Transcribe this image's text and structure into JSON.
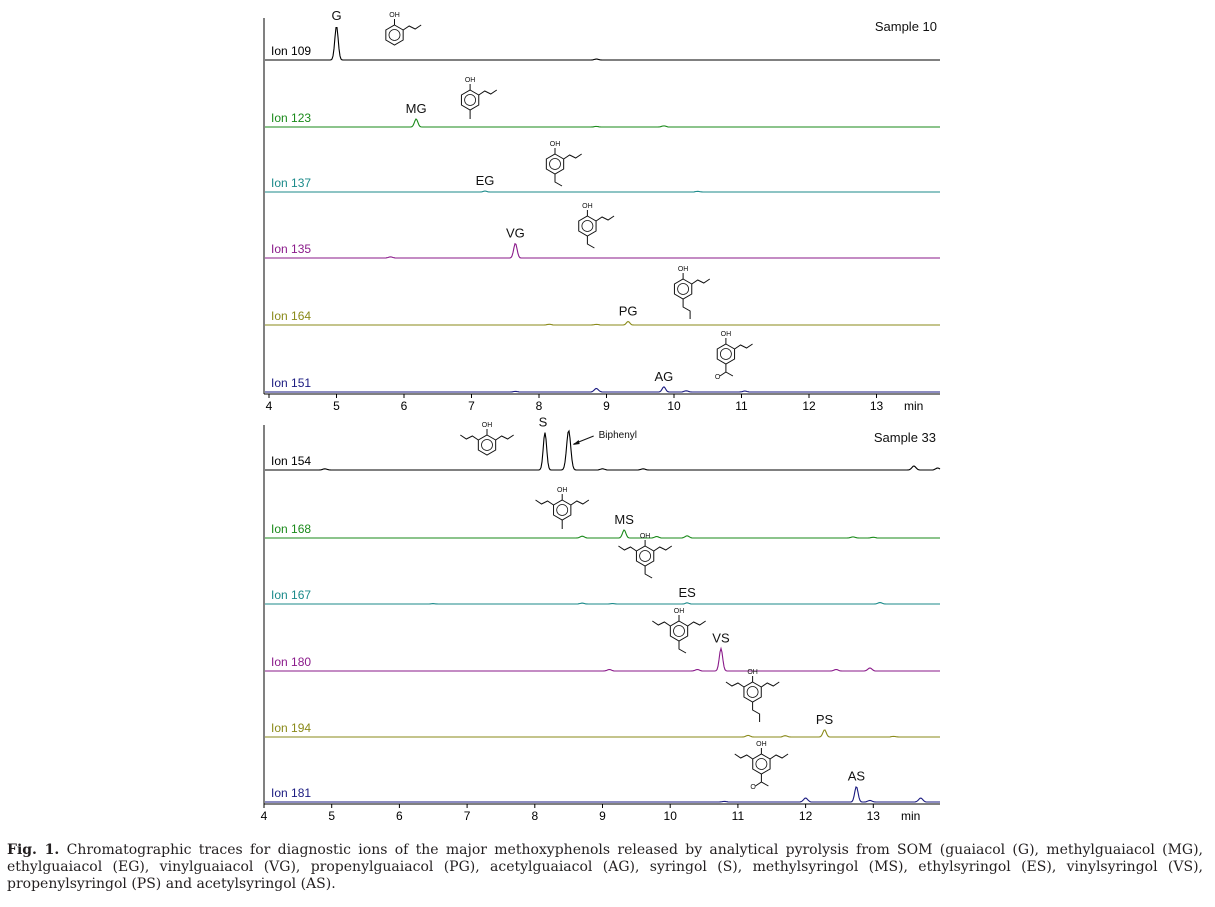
{
  "colors": {
    "axis": "#000000",
    "traces": [
      "#000000",
      "#1a8a1a",
      "#1b8a8a",
      "#8a1a8a",
      "#8a8a1a",
      "#1a1a80"
    ]
  },
  "caption": {
    "label": "Fig. 1.",
    "text": "Chromatographic traces for diagnostic ions of the major methoxyphenols released by analytical pyrolysis from SOM (guaiacol (G), methylguaiacol (MG), ethylguaiacol (EG), vinylguaiacol (VG), propenylguaiacol (PG), acetylguaiacol (AG), syringol (S), methylsyringol (MS), ethylsyringol (ES), vinylsyringol (VS), propenylsyringol (PS) and acetylsyringol (AS)."
  },
  "chart_data": [
    {
      "type": "line",
      "title": "Sample 10",
      "xlabel": "min",
      "x_ticks": [
        4,
        5,
        6,
        7,
        8,
        9,
        10,
        11,
        12,
        13
      ],
      "xlim": [
        4,
        14
      ],
      "series": [
        {
          "name": "Ion 109",
          "peaks": [
            {
              "label": "G",
              "rt": 5.0,
              "height": 1.0,
              "structure": "guaiacol"
            },
            {
              "rt": 8.85,
              "height": 0.03
            }
          ]
        },
        {
          "name": "Ion 123",
          "peaks": [
            {
              "label": "MG",
              "rt": 6.18,
              "height": 0.5,
              "structure": "methylguaiacol"
            },
            {
              "rt": 8.85,
              "height": 0.04
            },
            {
              "rt": 9.85,
              "height": 0.08
            }
          ]
        },
        {
          "name": "Ion 137",
          "peaks": [
            {
              "label": "EG",
              "rt": 7.2,
              "height": 0.2,
              "structure": "ethylguaiacol"
            },
            {
              "rt": 10.35,
              "height": 0.15
            }
          ]
        },
        {
          "name": "Ion 135",
          "peaks": [
            {
              "label": "VG",
              "rt": 7.65,
              "height": 0.7,
              "structure": "vinylguaiacol"
            },
            {
              "rt": 5.8,
              "height": 0.06
            }
          ]
        },
        {
          "name": "Ion 164",
          "peaks": [
            {
              "label": "PG",
              "rt": 9.32,
              "height": 0.35,
              "structure": "propenylguaiacol"
            },
            {
              "rt": 8.15,
              "height": 0.08
            },
            {
              "rt": 8.85,
              "height": 0.07
            }
          ]
        },
        {
          "name": "Ion 151",
          "peaks": [
            {
              "label": "AG",
              "rt": 9.85,
              "height": 0.4,
              "structure": "acetylguaiacol"
            },
            {
              "rt": 8.85,
              "height": 0.3
            },
            {
              "rt": 7.65,
              "height": 0.05
            },
            {
              "rt": 10.18,
              "height": 0.1
            },
            {
              "rt": 11.05,
              "height": 0.08
            }
          ]
        }
      ]
    },
    {
      "type": "line",
      "title": "Sample 33",
      "xlabel": "min",
      "x_ticks": [
        4,
        5,
        6,
        7,
        8,
        9,
        10,
        11,
        12,
        13
      ],
      "xlim": [
        4,
        14
      ],
      "annotations": [
        {
          "text": "Biphenyl",
          "rt": 8.5
        }
      ],
      "series": [
        {
          "name": "Ion 154",
          "peaks": [
            {
              "label": "S",
              "rt": 8.15,
              "height": 0.85,
              "structure": "syringol"
            },
            {
              "rt": 8.5,
              "height": 1.0
            },
            {
              "rt": 4.9,
              "height": 0.03
            },
            {
              "rt": 9.0,
              "height": 0.03
            },
            {
              "rt": 9.6,
              "height": 0.03
            },
            {
              "rt": 13.6,
              "height": 0.1
            },
            {
              "rt": 13.95,
              "height": 0.05
            }
          ]
        },
        {
          "name": "Ion 168",
          "peaks": [
            {
              "label": "MS",
              "rt": 9.32,
              "height": 0.4,
              "structure": "methylsyringol"
            },
            {
              "rt": 8.7,
              "height": 0.1
            },
            {
              "rt": 9.8,
              "height": 0.08
            },
            {
              "rt": 10.25,
              "height": 0.12
            },
            {
              "rt": 12.7,
              "height": 0.06
            },
            {
              "rt": 13.0,
              "height": 0.04
            }
          ]
        },
        {
          "name": "Ion 167",
          "peaks": [
            {
              "label": "ES",
              "rt": 10.25,
              "height": 0.15,
              "structure": "ethylsyringol"
            },
            {
              "rt": 6.5,
              "height": 0.05
            },
            {
              "rt": 8.7,
              "height": 0.12
            },
            {
              "rt": 9.15,
              "height": 0.06
            },
            {
              "rt": 13.1,
              "height": 0.2
            }
          ]
        },
        {
          "name": "Ion 180",
          "peaks": [
            {
              "label": "VS",
              "rt": 10.75,
              "height": 0.8,
              "structure": "vinylsyringol"
            },
            {
              "rt": 9.1,
              "height": 0.06
            },
            {
              "rt": 10.4,
              "height": 0.06
            },
            {
              "rt": 12.45,
              "height": 0.06
            },
            {
              "rt": 12.95,
              "height": 0.12
            }
          ]
        },
        {
          "name": "Ion 194",
          "peaks": [
            {
              "label": "PS",
              "rt": 12.28,
              "height": 0.4,
              "structure": "propenylsyringol"
            },
            {
              "rt": 11.15,
              "height": 0.1
            },
            {
              "rt": 11.7,
              "height": 0.08
            },
            {
              "rt": 13.3,
              "height": 0.04
            }
          ]
        },
        {
          "name": "Ion 181",
          "peaks": [
            {
              "label": "AS",
              "rt": 12.75,
              "height": 0.7,
              "structure": "acetylsyringol"
            },
            {
              "rt": 12.0,
              "height": 0.2
            },
            {
              "rt": 12.95,
              "height": 0.08
            },
            {
              "rt": 13.7,
              "height": 0.2
            },
            {
              "rt": 10.8,
              "height": 0.03
            }
          ]
        }
      ]
    }
  ]
}
